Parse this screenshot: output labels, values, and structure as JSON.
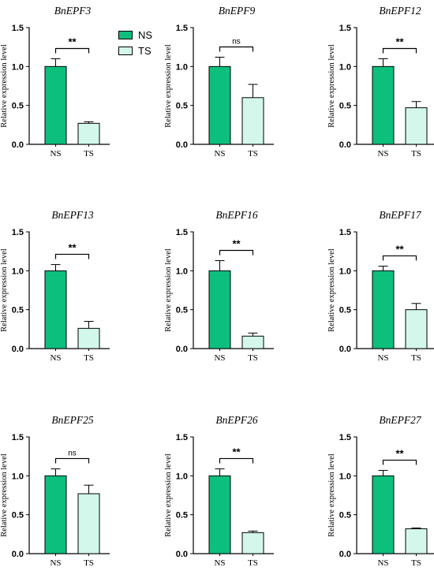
{
  "colors": {
    "ns": "#0cbf7d",
    "ts": "#d3f8eb",
    "stroke": "#000000"
  },
  "legend": [
    {
      "label": "NS",
      "color": "#0cbf7d"
    },
    {
      "label": "TS",
      "color": "#d3f8eb"
    }
  ],
  "chart_data": [
    {
      "type": "bar",
      "title": "BnEPF3",
      "ylabel": "Relative expression level",
      "categories": [
        "NS",
        "TS"
      ],
      "values": [
        1.0,
        0.27
      ],
      "errors": [
        0.1,
        0.02
      ],
      "ylim": [
        0,
        1.5
      ],
      "yticks": [
        "0.0",
        "0.5",
        "1.0",
        "1.5"
      ],
      "significance": "**"
    },
    {
      "type": "bar",
      "title": "BnEPF9",
      "ylabel": "Relative expression level",
      "categories": [
        "NS",
        "TS"
      ],
      "values": [
        1.0,
        0.6
      ],
      "errors": [
        0.12,
        0.17
      ],
      "ylim": [
        0,
        1.5
      ],
      "yticks": [
        "0.0",
        "0.5",
        "1.0",
        "1.5"
      ],
      "significance": "ns"
    },
    {
      "type": "bar",
      "title": "BnEPF12",
      "ylabel": "Relative expression level",
      "categories": [
        "NS",
        "TS"
      ],
      "values": [
        1.0,
        0.47
      ],
      "errors": [
        0.1,
        0.08
      ],
      "ylim": [
        0,
        1.5
      ],
      "yticks": [
        "0.0",
        "0.5",
        "1.0",
        "1.5"
      ],
      "significance": "**"
    },
    {
      "type": "bar",
      "title": "BnEPF13",
      "ylabel": "Relative expression level",
      "categories": [
        "NS",
        "TS"
      ],
      "values": [
        1.0,
        0.26
      ],
      "errors": [
        0.08,
        0.09
      ],
      "ylim": [
        0,
        1.5
      ],
      "yticks": [
        "0.0",
        "0.5",
        "1.0",
        "1.5"
      ],
      "significance": "**"
    },
    {
      "type": "bar",
      "title": "BnEPF16",
      "ylabel": "Relative expression level",
      "categories": [
        "NS",
        "TS"
      ],
      "values": [
        1.0,
        0.16
      ],
      "errors": [
        0.13,
        0.04
      ],
      "ylim": [
        0,
        1.5
      ],
      "yticks": [
        "0.0",
        "0.5",
        "1.0",
        "1.5"
      ],
      "significance": "**"
    },
    {
      "type": "bar",
      "title": "BnEPF17",
      "ylabel": "Relative expression level",
      "categories": [
        "NS",
        "TS"
      ],
      "values": [
        1.0,
        0.5
      ],
      "errors": [
        0.06,
        0.08
      ],
      "ylim": [
        0,
        1.5
      ],
      "yticks": [
        "0.0",
        "0.5",
        "1.0",
        "1.5"
      ],
      "significance": "**"
    },
    {
      "type": "bar",
      "title": "BnEPF25",
      "ylabel": "Relative expression level",
      "categories": [
        "NS",
        "TS"
      ],
      "values": [
        1.0,
        0.77
      ],
      "errors": [
        0.09,
        0.11
      ],
      "ylim": [
        0,
        1.5
      ],
      "yticks": [
        "0.0",
        "0.5",
        "1.0",
        "1.5"
      ],
      "significance": "ns"
    },
    {
      "type": "bar",
      "title": "BnEPF26",
      "ylabel": "Relative expression level",
      "categories": [
        "NS",
        "TS"
      ],
      "values": [
        1.0,
        0.27
      ],
      "errors": [
        0.09,
        0.02
      ],
      "ylim": [
        0,
        1.5
      ],
      "yticks": [
        "0.0",
        "0.5",
        "1.0",
        "1.5"
      ],
      "significance": "**"
    },
    {
      "type": "bar",
      "title": "BnEPF27",
      "ylabel": "Relative expression level",
      "categories": [
        "NS",
        "TS"
      ],
      "values": [
        1.0,
        0.32
      ],
      "errors": [
        0.07,
        0.01
      ],
      "ylim": [
        0,
        1.5
      ],
      "yticks": [
        "0.0",
        "0.5",
        "1.0",
        "1.5"
      ],
      "significance": "**"
    }
  ]
}
